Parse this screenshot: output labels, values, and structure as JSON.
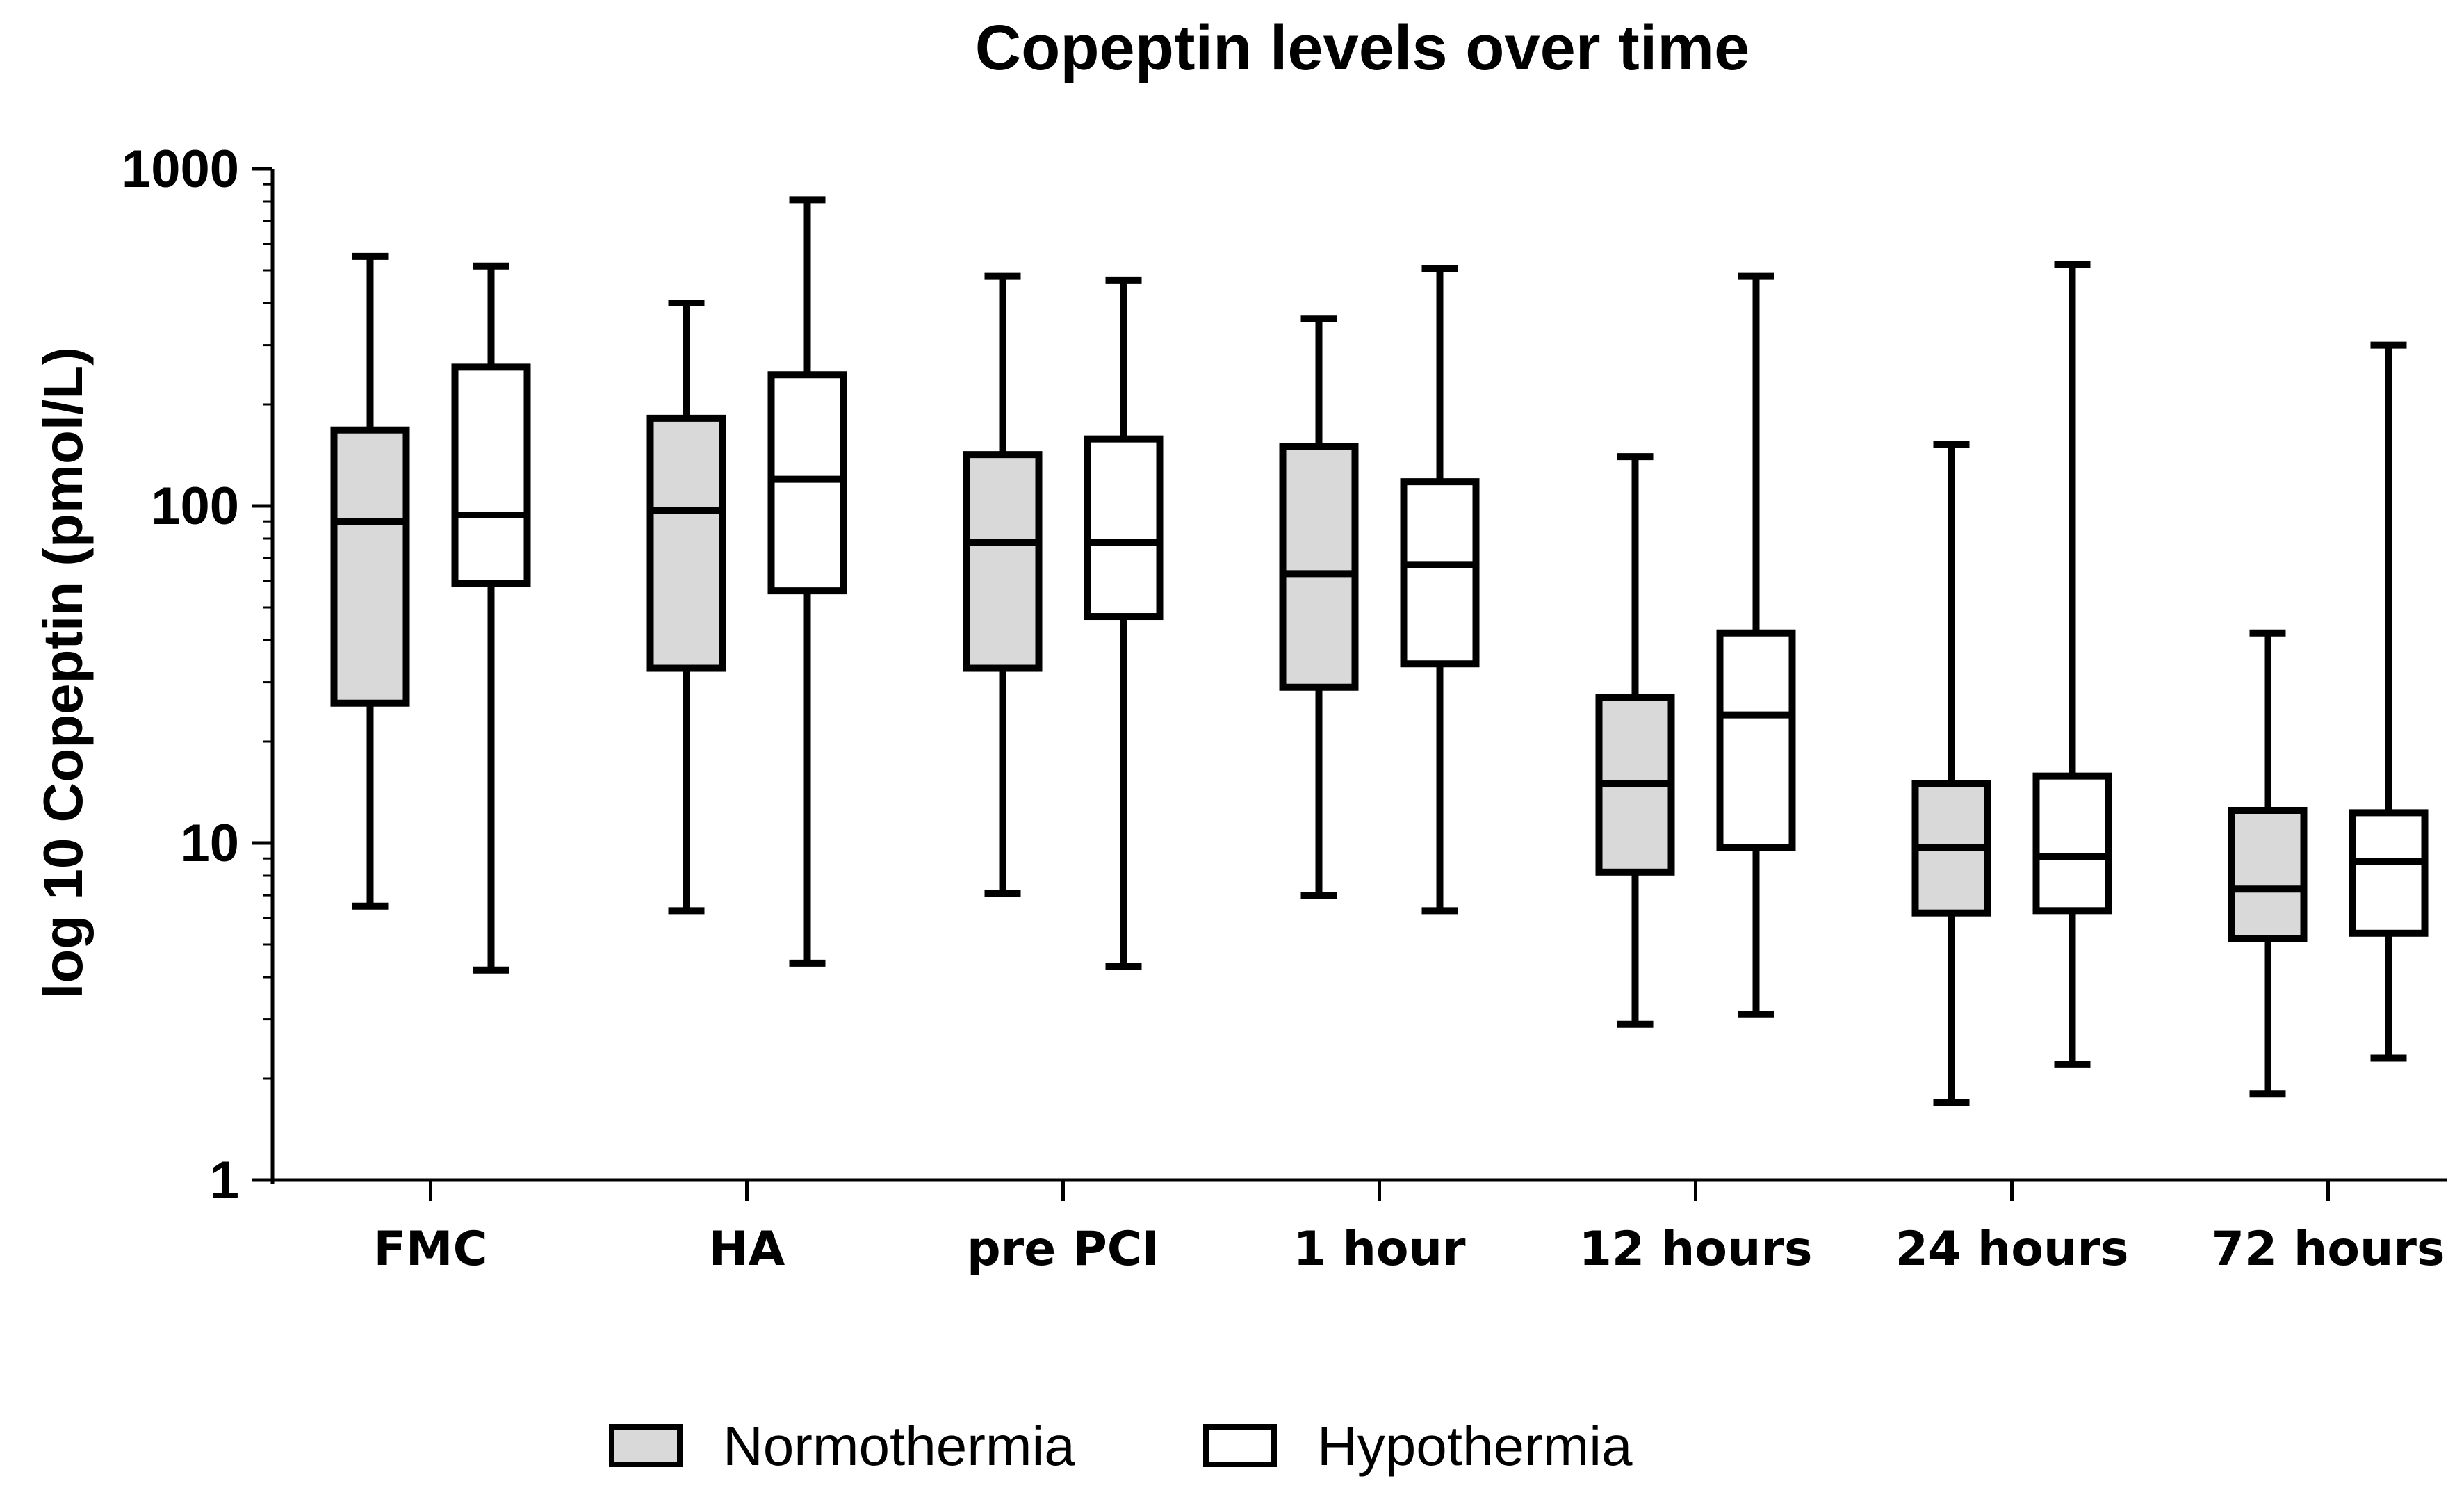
{
  "chart_data": {
    "type": "boxplot",
    "title": "Copeptin levels over time",
    "xlabel": "",
    "ylabel": "log 10 Copeptin (pmol/L)",
    "yscale": "log",
    "ylim": [
      1,
      1000
    ],
    "yticks": [
      "1",
      "10",
      "100",
      "1000"
    ],
    "categories": [
      "FMC",
      "HA",
      "pre PCI",
      "1 hour",
      "12 hours",
      "24 hours",
      "72 hours"
    ],
    "legend_position": "bottom",
    "series": [
      {
        "name": "Normothermia",
        "fill": "#d9d9d9",
        "boxes": [
          {
            "min": 6.5,
            "q1": 26,
            "median": 90,
            "q3": 168,
            "max": 550
          },
          {
            "min": 6.3,
            "q1": 33,
            "median": 97,
            "q3": 182,
            "max": 400
          },
          {
            "min": 7.1,
            "q1": 33,
            "median": 78,
            "q3": 142,
            "max": 480
          },
          {
            "min": 7.0,
            "q1": 29,
            "median": 63,
            "q3": 150,
            "max": 360
          },
          {
            "min": 2.9,
            "q1": 8.2,
            "median": 15,
            "q3": 27,
            "max": 140
          },
          {
            "min": 1.7,
            "q1": 6.2,
            "median": 9.7,
            "q3": 15,
            "max": 152
          },
          {
            "min": 1.8,
            "q1": 5.2,
            "median": 7.3,
            "q3": 12.5,
            "max": 42
          }
        ]
      },
      {
        "name": "Hypothermia",
        "fill": "#ffffff",
        "boxes": [
          {
            "min": 4.2,
            "q1": 59,
            "median": 94,
            "q3": 258,
            "max": 515
          },
          {
            "min": 4.4,
            "q1": 56,
            "median": 120,
            "q3": 245,
            "max": 810
          },
          {
            "min": 4.3,
            "q1": 47,
            "median": 78,
            "q3": 158,
            "max": 468
          },
          {
            "min": 6.3,
            "q1": 34,
            "median": 67,
            "q3": 118,
            "max": 505
          },
          {
            "min": 3.1,
            "q1": 9.7,
            "median": 24,
            "q3": 42,
            "max": 480
          },
          {
            "min": 2.2,
            "q1": 6.3,
            "median": 9.1,
            "q3": 15.8,
            "max": 520
          },
          {
            "min": 2.3,
            "q1": 5.4,
            "median": 8.8,
            "q3": 12.3,
            "max": 300
          }
        ]
      }
    ]
  },
  "colors": {
    "stroke": "#000000",
    "normothermia_fill": "#d9d9d9",
    "hypothermia_fill": "#ffffff",
    "axis": "#000000"
  }
}
